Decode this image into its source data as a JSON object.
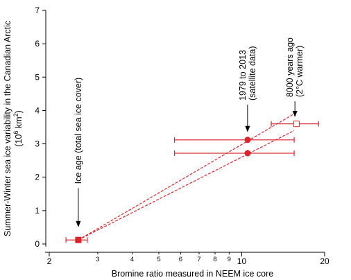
{
  "chart_data": {
    "type": "scatter",
    "xlabel": "Bromine ratio measured in NEEM ice core",
    "ylabel_line1": "Summer-Winter sea ice variability in the Canadian Arctic",
    "ylabel_line2_pre": "(10",
    "ylabel_line2_sup1": "6",
    "ylabel_line2_mid": " km",
    "ylabel_line2_sup2": "2",
    "ylabel_line2_post": ")",
    "x_scale": "log",
    "xlim": [
      1.8,
      20
    ],
    "ylim": [
      -0.1,
      7
    ],
    "y_ticks": [
      "0",
      "1",
      "2",
      "3",
      "4",
      "5",
      "6",
      "7"
    ],
    "x_major_ticks": [
      {
        "value": 2,
        "label": "2"
      },
      {
        "value": 10,
        "label": "10"
      },
      {
        "value": 20,
        "label": "20"
      }
    ],
    "x_minor_ticks": [
      {
        "value": 3,
        "label": "3"
      },
      {
        "value": 4,
        "label": "4"
      },
      {
        "value": 5,
        "label": "5"
      },
      {
        "value": 6,
        "label": "6"
      },
      {
        "value": 7,
        "label": "7"
      },
      {
        "value": 8,
        "label": "8"
      },
      {
        "value": 9,
        "label": "9"
      }
    ],
    "color": "#d8242a",
    "points": [
      {
        "x": 2.55,
        "y": 0.12,
        "xerr": [
          2.3,
          2.75
        ],
        "marker": "filled-square"
      },
      {
        "x": 10.5,
        "y": 3.12,
        "xerr": [
          5.7,
          15.5
        ],
        "marker": "filled-circle"
      },
      {
        "x": 10.5,
        "y": 2.72,
        "xerr": [
          5.7,
          15.5
        ],
        "marker": "filled-circle"
      },
      {
        "x": 15.8,
        "y": 3.6,
        "xerr": [
          12.8,
          19.0
        ],
        "marker": "open-square"
      }
    ],
    "dashed_lines": [
      {
        "from": [
          2.55,
          0.12
        ],
        "to": [
          15.5,
          3.9
        ]
      },
      {
        "from": [
          2.55,
          0.12
        ],
        "to": [
          15.5,
          3.4
        ]
      }
    ],
    "annotations": [
      {
        "lines": [
          "Ice age (total sea ice cover)"
        ],
        "target": [
          2.55,
          0.5
        ],
        "text_bottom_y": 1.8,
        "text_x": 2.55
      },
      {
        "lines": [
          "1979 to 2013",
          "(satellite data)"
        ],
        "target": [
          10.5,
          3.35
        ],
        "text_bottom_y": 4.3,
        "text_x": 10.5
      },
      {
        "lines": [
          "8000 years ago",
          "(2°C warmer)"
        ],
        "target": [
          15.6,
          3.8
        ],
        "text_bottom_y": 4.4,
        "text_x": 15.6
      }
    ]
  }
}
